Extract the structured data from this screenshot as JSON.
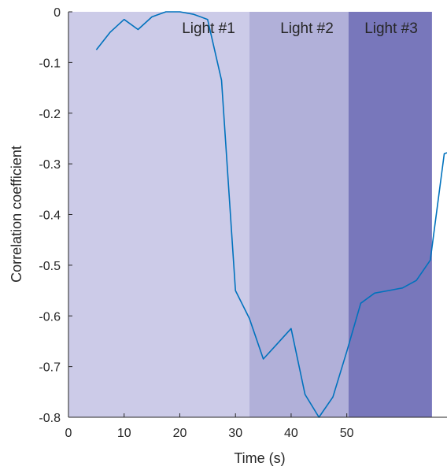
{
  "chart_data": {
    "type": "line",
    "xlabel": "Time (s)",
    "ylabel": "Correlation coefficient",
    "xlim": [
      0,
      68
    ],
    "ylim": [
      -0.8,
      0
    ],
    "xticks": [
      0,
      10,
      20,
      30,
      40,
      50
    ],
    "xtick_labels": [
      "0",
      "10",
      "20",
      "30",
      "40",
      "50"
    ],
    "yticks": [
      0,
      -0.1,
      -0.2,
      -0.3,
      -0.4,
      -0.5,
      -0.6,
      -0.7,
      -0.8
    ],
    "ytick_labels": [
      "0",
      "-0.1",
      "-0.2",
      "-0.3",
      "-0.4",
      "-0.5",
      "-0.6",
      "-0.7",
      "-0.8"
    ],
    "grid": false,
    "regions": [
      {
        "label": "Light #1",
        "x_start": 0,
        "x_end": 32.5,
        "color": "#cccbe8"
      },
      {
        "label": "Light #2",
        "x_start": 32.5,
        "x_end": 50.3,
        "color": "#b1b0d9"
      },
      {
        "label": "Light #3",
        "x_start": 50.3,
        "x_end": 65.3,
        "color": "#7877bb"
      }
    ],
    "series": [
      {
        "color": "#0072bd",
        "x": [
          5,
          7.5,
          10,
          12.5,
          15,
          17.5,
          20,
          22.5,
          25,
          27.5,
          30,
          32.5,
          35,
          37.5,
          40,
          42.5,
          45,
          47.5,
          50,
          52.5,
          55,
          57.5,
          60,
          62.5,
          65,
          67.5,
          68
        ],
        "y": [
          -0.075,
          -0.04,
          -0.015,
          -0.035,
          -0.01,
          0.0,
          0.0,
          -0.005,
          -0.015,
          -0.135,
          -0.55,
          -0.605,
          -0.685,
          -0.655,
          -0.625,
          -0.755,
          -0.8,
          -0.76,
          -0.67,
          -0.575,
          -0.555,
          -0.55,
          -0.545,
          -0.53,
          -0.49,
          -0.28,
          -0.278
        ]
      }
    ]
  }
}
